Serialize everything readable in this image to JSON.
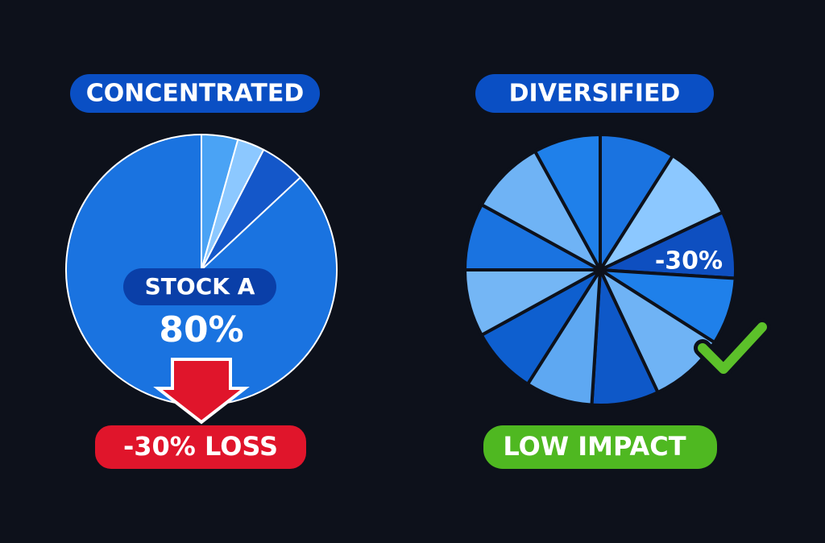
{
  "chart_data": [
    {
      "type": "pie",
      "title": "CONCENTRATED",
      "categories": [
        null,
        null,
        null,
        "STOCK A"
      ],
      "values": [
        4,
        3,
        5,
        80
      ],
      "value_labels": [
        null,
        null,
        null,
        "80%"
      ],
      "colors": [
        "#4aa3f5",
        "#8cc8ff",
        "#1457c9",
        "#1a73e0"
      ],
      "annotation": "-30% LOSS"
    },
    {
      "type": "pie",
      "title": "DIVERSIFIED",
      "values": [
        9,
        9,
        8,
        8,
        9,
        8,
        8,
        8,
        8,
        8,
        9,
        8
      ],
      "colors": [
        "#1a73e0",
        "#8cc8ff",
        "#0e4fc0",
        "#1f80ea",
        "#6fb3f5",
        "#0e58c8",
        "#5ea8f2",
        "#0e5fcf",
        "#74b6f5",
        "#1a73e0",
        "#6fb3f5",
        "#1f80ea"
      ],
      "slice_annotation": "-30%",
      "annotation": "LOW IMPACT"
    }
  ]
}
